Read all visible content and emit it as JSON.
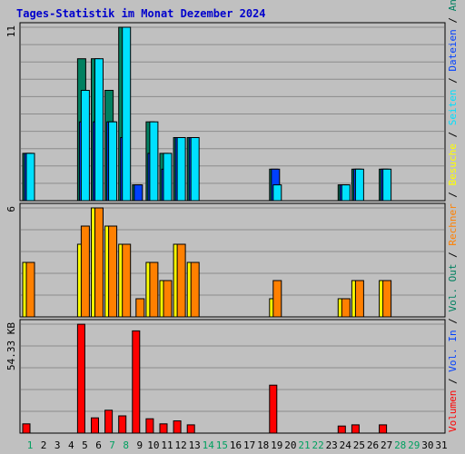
{
  "title": "Tages-Statistik im Monat Dezember 2024",
  "colors": {
    "background": "#c0c0c0",
    "grid": "#8c8c8c",
    "title": "#0000cc",
    "anfragen": "#008060",
    "dateien": "#0040ff",
    "seiten": "#00e0ff",
    "besuche": "#ffff00",
    "rechner": "#ff8000",
    "vol_out": "#008060",
    "vol_in": "#0040ff",
    "volumen": "#ff0000",
    "weekday_label": "#000000",
    "weekend_label": "#00a060"
  },
  "chart_data": [
    {
      "id": "hits",
      "type": "bar",
      "ylabel": "11",
      "ylim": [
        0,
        11
      ],
      "legend_placement": "right",
      "categories": [
        "1",
        "2",
        "3",
        "4",
        "5",
        "6",
        "7",
        "8",
        "9",
        "10",
        "11",
        "12",
        "13",
        "14",
        "15",
        "16",
        "17",
        "18",
        "19",
        "20",
        "21",
        "22",
        "23",
        "24",
        "25",
        "26",
        "27",
        "28",
        "29",
        "30",
        "31"
      ],
      "series": [
        {
          "name": "Anfragen",
          "key": "anfragen",
          "values": [
            3,
            0,
            0,
            0,
            9,
            9,
            7,
            11,
            1,
            5,
            3,
            4,
            4,
            0,
            0,
            0,
            0,
            0,
            2,
            0,
            0,
            0,
            0,
            1,
            2,
            0,
            2,
            0,
            0,
            0,
            0
          ]
        },
        {
          "name": "Dateien",
          "key": "dateien",
          "values": [
            3,
            0,
            0,
            0,
            5,
            5,
            5,
            4,
            1,
            3,
            2,
            4,
            4,
            0,
            0,
            0,
            0,
            0,
            2,
            0,
            0,
            0,
            0,
            1,
            2,
            0,
            2,
            0,
            0,
            0,
            0
          ]
        },
        {
          "name": "Seiten",
          "key": "seiten",
          "values": [
            3,
            0,
            0,
            0,
            7,
            9,
            5,
            11,
            0,
            5,
            3,
            4,
            4,
            0,
            0,
            0,
            0,
            0,
            1,
            0,
            0,
            0,
            0,
            1,
            2,
            0,
            2,
            0,
            0,
            0,
            0
          ]
        }
      ]
    },
    {
      "id": "visits",
      "type": "bar",
      "ylabel": "6",
      "ylim": [
        0,
        6
      ],
      "categories": [
        "1",
        "2",
        "3",
        "4",
        "5",
        "6",
        "7",
        "8",
        "9",
        "10",
        "11",
        "12",
        "13",
        "14",
        "15",
        "16",
        "17",
        "18",
        "19",
        "20",
        "21",
        "22",
        "23",
        "24",
        "25",
        "26",
        "27",
        "28",
        "29",
        "30",
        "31"
      ],
      "series": [
        {
          "name": "Besuche",
          "key": "besuche",
          "values": [
            3,
            0,
            0,
            0,
            4,
            6,
            5,
            4,
            0,
            3,
            2,
            4,
            3,
            0,
            0,
            0,
            0,
            0,
            1,
            0,
            0,
            0,
            0,
            1,
            2,
            0,
            2,
            0,
            0,
            0,
            0
          ]
        },
        {
          "name": "Rechner",
          "key": "rechner",
          "values": [
            3,
            0,
            0,
            0,
            5,
            6,
            5,
            4,
            1,
            3,
            2,
            4,
            3,
            0,
            0,
            0,
            0,
            0,
            2,
            0,
            0,
            0,
            0,
            1,
            2,
            0,
            2,
            0,
            0,
            0,
            0
          ]
        }
      ]
    },
    {
      "id": "volume",
      "type": "bar",
      "ylabel": "54.33 KB",
      "ylim": [
        0,
        54.33
      ],
      "categories": [
        "1",
        "2",
        "3",
        "4",
        "5",
        "6",
        "7",
        "8",
        "9",
        "10",
        "11",
        "12",
        "13",
        "14",
        "15",
        "16",
        "17",
        "18",
        "19",
        "20",
        "21",
        "22",
        "23",
        "24",
        "25",
        "26",
        "27",
        "28",
        "29",
        "30",
        "31"
      ],
      "series": [
        {
          "name": "Volumen",
          "key": "volumen",
          "values": [
            3.5,
            0,
            0,
            0,
            54.3,
            6.1,
            9.6,
            7.0,
            50.6,
            5.7,
            3.5,
            4.8,
            3.1,
            0,
            0,
            0,
            0,
            0,
            21.8,
            0,
            0,
            0,
            0,
            2.6,
            3.1,
            0,
            3.1,
            0,
            0,
            0,
            0
          ]
        }
      ]
    }
  ],
  "legend": [
    {
      "text": "Anfragen",
      "key": "anfragen"
    },
    {
      "text": " / ",
      "key": "sep"
    },
    {
      "text": "Dateien",
      "key": "dateien"
    },
    {
      "text": " / ",
      "key": "sep"
    },
    {
      "text": "Seiten",
      "key": "seiten"
    },
    {
      "text": " / ",
      "key": "sep"
    },
    {
      "text": "Besuche",
      "key": "besuche"
    },
    {
      "text": " / ",
      "key": "sep"
    },
    {
      "text": "Rechner",
      "key": "rechner"
    },
    {
      "text": " / ",
      "key": "sep"
    },
    {
      "text": "Vol. Out",
      "key": "vol_out"
    },
    {
      "text": " / ",
      "key": "sep"
    },
    {
      "text": "Vol. In",
      "key": "vol_in"
    },
    {
      "text": " / ",
      "key": "sep"
    },
    {
      "text": "Volumen",
      "key": "volumen"
    }
  ],
  "weekend_days": [
    "1",
    "7",
    "8",
    "14",
    "15",
    "21",
    "22",
    "28",
    "29"
  ]
}
